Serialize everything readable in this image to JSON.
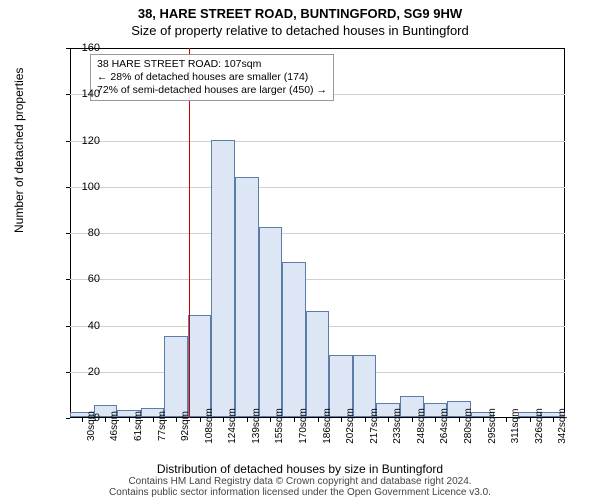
{
  "title_main": "38, HARE STREET ROAD, BUNTINGFORD, SG9 9HW",
  "title_sub": "Size of property relative to detached houses in Buntingford",
  "y_axis_label": "Number of detached properties",
  "x_axis_label": "Distribution of detached houses by size in Buntingford",
  "footer_line1": "Contains HM Land Registry data © Crown copyright and database right 2024.",
  "footer_line2": "Contains public sector information licensed under the Open Government Licence v3.0.",
  "chart": {
    "type": "histogram",
    "ylim": [
      0,
      160
    ],
    "yticks": [
      0,
      20,
      40,
      60,
      80,
      100,
      120,
      140,
      160
    ],
    "x_categories": [
      "30sqm",
      "46sqm",
      "61sqm",
      "77sqm",
      "92sqm",
      "108sqm",
      "124sqm",
      "139sqm",
      "155sqm",
      "170sqm",
      "186sqm",
      "202sqm",
      "217sqm",
      "233sqm",
      "248sqm",
      "264sqm",
      "280sqm",
      "295sqm",
      "311sqm",
      "326sqm",
      "342sqm"
    ],
    "values": [
      2,
      5,
      3,
      4,
      35,
      44,
      120,
      104,
      82,
      67,
      46,
      27,
      27,
      6,
      9,
      6,
      7,
      2,
      0,
      2,
      2
    ],
    "bar_fill": "#dce6f5",
    "bar_stroke": "#5b7da8",
    "grid_color": "#d0d0d0",
    "reference_line": {
      "position_index": 5,
      "color": "#d00000"
    },
    "annotation": {
      "line1": "38 HARE STREET ROAD: 107sqm",
      "line2": "← 28% of detached houses are smaller (174)",
      "line3": "72% of semi-detached houses are larger (450) →"
    }
  }
}
